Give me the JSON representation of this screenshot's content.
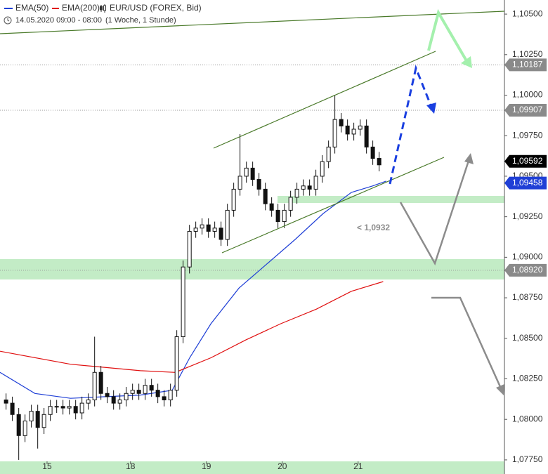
{
  "chart_data": {
    "type": "candlestick",
    "legend": {
      "ema50": "EMA(50)",
      "ema200": "EMA(200)",
      "symbol": "EUR/USD (FOREX, Bid)",
      "period": "14.05.2020 09:00 - 08:00",
      "interval": "(1 Woche, 1 Stunde)"
    },
    "x": [
      0.46,
      0.543,
      0.627,
      0.71,
      0.793,
      0.877,
      0.96,
      1.043,
      1.127,
      1.21,
      1.293,
      1.377,
      1.46,
      1.543,
      1.627,
      1.71,
      1.793,
      1.877,
      1.96,
      2.043,
      2.127,
      2.21,
      2.293,
      2.377,
      2.46,
      2.543,
      2.627,
      2.71,
      2.793,
      2.877,
      2.96,
      3.043,
      3.127,
      3.21,
      3.293,
      3.377,
      3.46,
      3.543,
      3.627,
      3.71,
      3.793,
      3.877,
      3.96,
      4.043,
      4.127,
      4.21,
      4.293,
      4.377,
      4.46,
      4.543,
      4.627,
      4.71,
      4.793,
      4.877,
      4.96,
      5.043,
      5.127,
      5.21,
      5.293,
      5.377
    ],
    "open": [
      1.0812,
      1.081,
      1.0803,
      1.079,
      1.0799,
      1.0805,
      1.0795,
      1.0803,
      1.0808,
      1.0808,
      1.0807,
      1.0808,
      1.0804,
      1.081,
      1.0812,
      1.0829,
      1.0816,
      1.0814,
      1.081,
      1.0812,
      1.0816,
      1.0818,
      1.0816,
      1.0821,
      1.0818,
      1.0814,
      1.0812,
      1.0818,
      1.0851,
      1.0894,
      1.0916,
      1.0918,
      1.092,
      1.0916,
      1.0918,
      1.0911,
      1.0929,
      1.0942,
      1.095,
      1.0955,
      1.0948,
      1.0942,
      1.0933,
      1.0929,
      1.0922,
      1.0929,
      1.0937,
      1.0942,
      1.0944,
      1.0942,
      1.095,
      1.0959,
      1.0968,
      1.0985,
      1.0981,
      1.0976,
      1.0979,
      1.0981,
      1.0968,
      1.0961
    ],
    "high": [
      1.0816,
      1.0814,
      1.0807,
      1.0803,
      1.0809,
      1.0809,
      1.0807,
      1.0812,
      1.0812,
      1.0812,
      1.0812,
      1.0812,
      1.0814,
      1.0816,
      1.0851,
      1.0833,
      1.082,
      1.0818,
      1.0816,
      1.082,
      1.0822,
      1.0822,
      1.0825,
      1.0825,
      1.0822,
      1.0818,
      1.0822,
      1.0855,
      1.0898,
      1.092,
      1.0922,
      1.0924,
      1.0924,
      1.0922,
      1.0922,
      1.0933,
      1.0946,
      1.0976,
      1.0959,
      1.0959,
      1.0952,
      1.0946,
      1.0937,
      1.0933,
      1.0933,
      1.0941,
      1.0946,
      1.0948,
      1.0948,
      1.0954,
      1.0963,
      1.0972,
      1.1,
      1.0989,
      1.0985,
      1.0983,
      1.0985,
      1.0985,
      1.0972,
      1.0965
    ],
    "low": [
      1.0806,
      1.0799,
      1.0775,
      1.0786,
      1.0795,
      1.0782,
      1.0791,
      1.0799,
      1.0804,
      1.0803,
      1.0803,
      1.08,
      1.08,
      1.0806,
      1.0808,
      1.0812,
      1.081,
      1.0806,
      1.0806,
      1.0808,
      1.0812,
      1.0812,
      1.0812,
      1.0814,
      1.081,
      1.0808,
      1.0808,
      1.0814,
      1.0847,
      1.089,
      1.0912,
      1.0914,
      1.0912,
      1.0912,
      1.0907,
      1.0907,
      1.0925,
      1.0938,
      1.0946,
      1.0944,
      1.0938,
      1.0929,
      1.0925,
      1.0918,
      1.0918,
      1.0925,
      1.0933,
      1.0938,
      1.0938,
      1.0938,
      1.0946,
      1.0955,
      1.0964,
      1.0977,
      1.0972,
      1.0972,
      1.0975,
      1.0964,
      1.0957,
      1.0953
    ],
    "close": [
      1.081,
      1.0803,
      1.079,
      1.0799,
      1.0805,
      1.0795,
      1.0803,
      1.0808,
      1.0808,
      1.0807,
      1.0808,
      1.0804,
      1.081,
      1.0812,
      1.0829,
      1.0816,
      1.0814,
      1.081,
      1.0812,
      1.0816,
      1.0818,
      1.0816,
      1.0821,
      1.0818,
      1.0814,
      1.0812,
      1.0818,
      1.0851,
      1.0894,
      1.0916,
      1.0918,
      1.092,
      1.0916,
      1.0918,
      1.0911,
      1.0929,
      1.0942,
      1.095,
      1.0955,
      1.0948,
      1.0942,
      1.0933,
      1.0929,
      1.0922,
      1.0929,
      1.0937,
      1.0942,
      1.0944,
      1.0942,
      1.095,
      1.0959,
      1.0968,
      1.0985,
      1.0981,
      1.0976,
      1.0979,
      1.0981,
      1.0968,
      1.0961,
      1.0957
    ],
    "series": [
      {
        "name": "EMA(50)",
        "color": "#1f3fd6",
        "x": [
          0.38,
          0.84,
          1.31,
          1.77,
          2.23,
          2.65,
          2.88,
          3.16,
          3.53,
          3.9,
          4.27,
          4.64,
          5.01,
          5.29,
          5.47
        ],
        "values": [
          1.0829,
          1.0816,
          1.0813,
          1.0814,
          1.0815,
          1.0818,
          1.0838,
          1.0859,
          1.0881,
          1.0896,
          1.0911,
          1.0927,
          1.094,
          1.0944,
          1.0947
        ]
      },
      {
        "name": "EMA(200)",
        "color": "#e01010",
        "x": [
          0.38,
          1.31,
          2.23,
          2.69,
          3.16,
          3.62,
          4.08,
          4.55,
          5.01,
          5.43
        ],
        "values": [
          1.0842,
          1.0834,
          1.083,
          1.0829,
          1.0838,
          1.0849,
          1.0859,
          1.0868,
          1.0879,
          1.0885
        ]
      }
    ],
    "xlim": [
      0.38,
      7.028
    ],
    "xticks": [
      {
        "value": 1,
        "label": "15"
      },
      {
        "value": 2.1,
        "label": "18"
      },
      {
        "value": 3.1,
        "label": "19"
      },
      {
        "value": 4.1,
        "label": "20"
      },
      {
        "value": 5.1,
        "label": "21"
      }
    ],
    "ylim": [
      1.07663,
      1.10587
    ],
    "yticks": [
      {
        "value": 1.0775,
        "label": "1,07750"
      },
      {
        "value": 1.08,
        "label": "1,08000"
      },
      {
        "value": 1.0825,
        "label": "1,08250"
      },
      {
        "value": 1.085,
        "label": "1,08500"
      },
      {
        "value": 1.0875,
        "label": "1,08750"
      },
      {
        "value": 1.09,
        "label": "1,09000"
      },
      {
        "value": 1.0925,
        "label": "1,09250"
      },
      {
        "value": 1.095,
        "label": "1,09500"
      },
      {
        "value": 1.0975,
        "label": "1,09750"
      },
      {
        "value": 1.1,
        "label": "1,10000"
      },
      {
        "value": 1.1025,
        "label": "1,10250"
      },
      {
        "value": 1.105,
        "label": "1,10500"
      }
    ],
    "price_labels": [
      {
        "value": 1.10187,
        "label": "1,10187",
        "color": "#8a8a8a",
        "line": true
      },
      {
        "value": 1.09907,
        "label": "1,09907",
        "color": "#8a8a8a",
        "line": true
      },
      {
        "value": 1.09592,
        "label": "1,09592",
        "color": "#000000",
        "line": false
      },
      {
        "value": 1.09458,
        "label": "1,09458",
        "color": "#1f3fd6",
        "line": false
      },
      {
        "value": 1.0892,
        "label": "1,08920",
        "color": "#8a8a8a",
        "line": true
      }
    ],
    "annotation": {
      "text": "< 1,0932"
    }
  }
}
